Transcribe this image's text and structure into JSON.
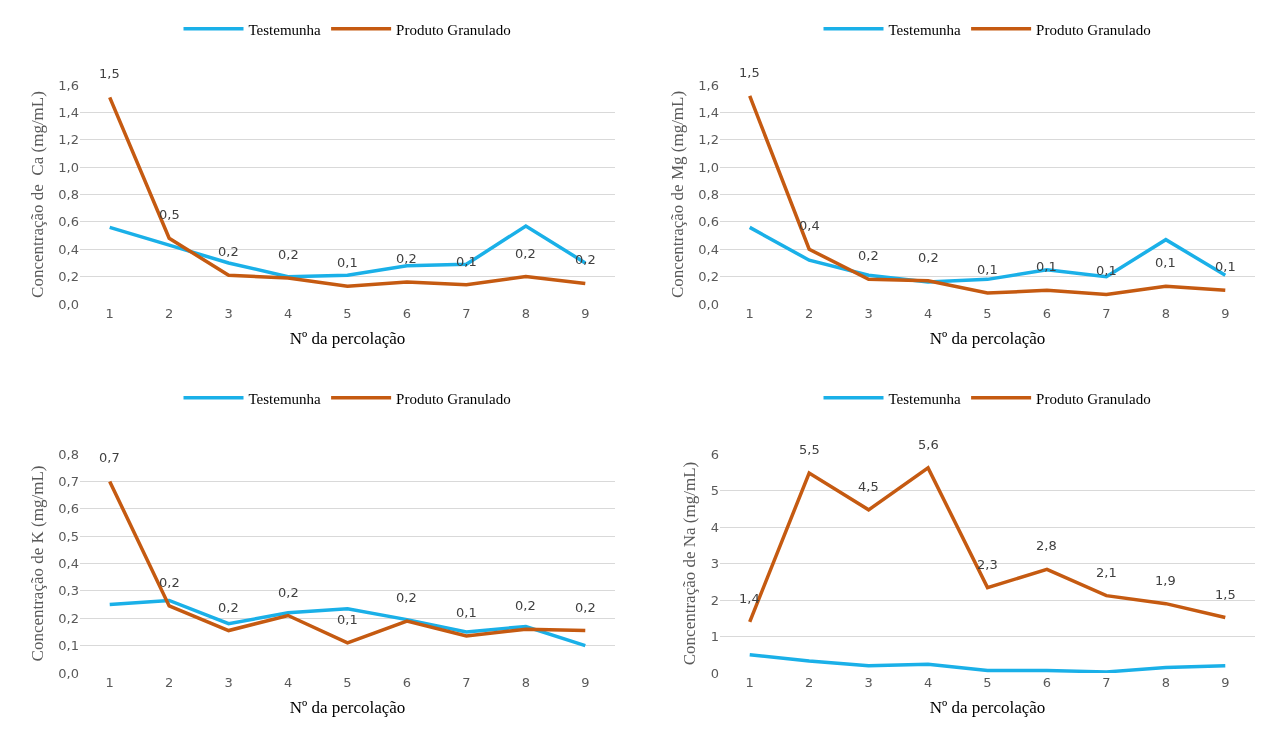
{
  "chart_data": [
    {
      "type": "line",
      "xlabel": "Nº da percolação",
      "ylabel": "Concentração de  Ca (mg/mL)",
      "categories": [
        "1",
        "2",
        "3",
        "4",
        "5",
        "6",
        "7",
        "8",
        "9"
      ],
      "ylim": [
        0,
        1.6
      ],
      "yticks": [
        {
          "value": 0,
          "label": "0,0"
        },
        {
          "value": 0.2,
          "label": "0,2"
        },
        {
          "value": 0.4,
          "label": "0,4"
        },
        {
          "value": 0.6,
          "label": "0,6"
        },
        {
          "value": 0.8,
          "label": "0,8"
        },
        {
          "value": 1.0,
          "label": "1,0"
        },
        {
          "value": 1.2,
          "label": "1,2"
        },
        {
          "value": 1.4,
          "label": "1,4"
        },
        {
          "value": 1.6,
          "label": "1,6"
        }
      ],
      "grid": "y",
      "legend": "top",
      "series": [
        {
          "name": "Testemunha",
          "color": "#1ab0e8",
          "values": [
            0.56,
            0.43,
            0.3,
            0.2,
            0.21,
            0.28,
            0.29,
            0.57,
            0.3
          ]
        },
        {
          "name": "Produto Granulado",
          "color": "#c55a11",
          "values": [
            1.51,
            0.48,
            0.21,
            0.19,
            0.13,
            0.16,
            0.14,
            0.2,
            0.15
          ],
          "value_labels": [
            "1,5",
            "0,5",
            "0,2",
            "0,2",
            "0,1",
            "0,2",
            "0,1",
            "0,2",
            "0,2"
          ]
        }
      ]
    },
    {
      "type": "line",
      "xlabel": "Nº da percolação",
      "ylabel": "Concentração de Mg (mg/mL)",
      "categories": [
        "1",
        "2",
        "3",
        "4",
        "5",
        "6",
        "7",
        "8",
        "9"
      ],
      "ylim": [
        0,
        1.6
      ],
      "yticks": [
        {
          "value": 0,
          "label": "0,0"
        },
        {
          "value": 0.2,
          "label": "0,2"
        },
        {
          "value": 0.4,
          "label": "0,4"
        },
        {
          "value": 0.6,
          "label": "0,6"
        },
        {
          "value": 0.8,
          "label": "0,8"
        },
        {
          "value": 1.0,
          "label": "1,0"
        },
        {
          "value": 1.2,
          "label": "1,2"
        },
        {
          "value": 1.4,
          "label": "1,4"
        },
        {
          "value": 1.6,
          "label": "1,6"
        }
      ],
      "grid": "y",
      "legend": "top",
      "series": [
        {
          "name": "Testemunha",
          "color": "#1ab0e8",
          "values": [
            0.56,
            0.32,
            0.21,
            0.16,
            0.18,
            0.25,
            0.2,
            0.47,
            0.21
          ]
        },
        {
          "name": "Produto Granulado",
          "color": "#c55a11",
          "values": [
            1.52,
            0.4,
            0.18,
            0.17,
            0.08,
            0.1,
            0.07,
            0.13,
            0.1
          ],
          "value_labels": [
            "1,5",
            "0,4",
            "0,2",
            "0,2",
            "0,1",
            "0,1",
            "0,1",
            "0,1",
            "0,1"
          ]
        }
      ]
    },
    {
      "type": "line",
      "xlabel": "Nº da percolação",
      "ylabel": "Concentração de K (mg/mL)",
      "categories": [
        "1",
        "2",
        "3",
        "4",
        "5",
        "6",
        "7",
        "8",
        "9"
      ],
      "ylim": [
        0,
        0.8
      ],
      "yticks": [
        {
          "value": 0,
          "label": "0,0"
        },
        {
          "value": 0.1,
          "label": "0,1"
        },
        {
          "value": 0.2,
          "label": "0,2"
        },
        {
          "value": 0.3,
          "label": "0,3"
        },
        {
          "value": 0.4,
          "label": "0,4"
        },
        {
          "value": 0.5,
          "label": "0,5"
        },
        {
          "value": 0.6,
          "label": "0,6"
        },
        {
          "value": 0.7,
          "label": "0,7"
        },
        {
          "value": 0.8,
          "label": "0,8"
        }
      ],
      "grid": "y",
      "legend": "top",
      "series": [
        {
          "name": "Testemunha",
          "color": "#1ab0e8",
          "values": [
            0.25,
            0.265,
            0.18,
            0.22,
            0.235,
            0.195,
            0.15,
            0.17,
            0.1
          ]
        },
        {
          "name": "Produto Granulado",
          "color": "#c55a11",
          "values": [
            0.7,
            0.245,
            0.155,
            0.21,
            0.11,
            0.19,
            0.135,
            0.16,
            0.155
          ],
          "value_labels": [
            "0,7",
            "0,2",
            "0,2",
            "0,2",
            "0,1",
            "0,2",
            "0,1",
            "0,2",
            "0,2"
          ]
        }
      ]
    },
    {
      "type": "line",
      "xlabel": "Nº da percolação",
      "ylabel": "Concentração de Na (mg/mL)",
      "categories": [
        "1",
        "2",
        "3",
        "4",
        "5",
        "6",
        "7",
        "8",
        "9"
      ],
      "ylim": [
        0,
        6
      ],
      "yticks": [
        0,
        1,
        2,
        3,
        4,
        5,
        6
      ],
      "grid": "y",
      "legend": "top",
      "series": [
        {
          "name": "Testemunha",
          "color": "#1ab0e8",
          "values": [
            0.5,
            0.33,
            0.2,
            0.24,
            0.07,
            0.07,
            0.03,
            0.15,
            0.2
          ]
        },
        {
          "name": "Produto Granulado",
          "color": "#c55a11",
          "values": [
            1.4,
            5.48,
            4.47,
            5.62,
            2.34,
            2.84,
            2.12,
            1.9,
            1.52
          ],
          "value_labels": [
            "1,4",
            "5,5",
            "4,5",
            "5,6",
            "2,3",
            "2,8",
            "2,1",
            "1,9",
            "1,5"
          ]
        }
      ]
    }
  ]
}
